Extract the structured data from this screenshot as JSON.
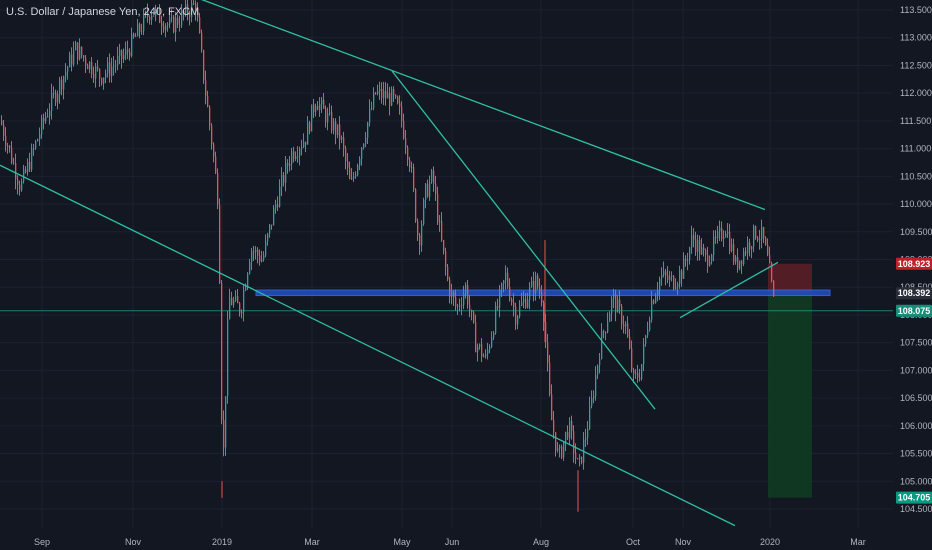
{
  "header": {
    "symbol_title": "U.S. Dollar / Japanese Yen, 240, FXCM"
  },
  "colors": {
    "background": "#131722",
    "bull": "#26a69a",
    "bear": "#ef5350",
    "trendline": "#2fbfa4",
    "support_zone": "#2151c4",
    "stop_zone": "#5a1e26",
    "target_zone": "#0f3b22",
    "price_line": "#26a69a",
    "badge_red": "#c0202a",
    "badge_dark": "#2a2e39",
    "badge_teal": "#138f7a",
    "badge_green": "#089981"
  },
  "chart_data": {
    "type": "candlestick",
    "title": "U.S. Dollar / Japanese Yen, 240, FXCM",
    "x_axis": {
      "ticks": [
        "Sep",
        "Nov",
        "2019",
        "Mar",
        "May",
        "Jun",
        "Aug",
        "Oct",
        "Nov",
        "2020",
        "Mar"
      ]
    },
    "y_axis": {
      "range": [
        104.25,
        113.65
      ],
      "ticks": [
        "113.500",
        "113.000",
        "112.500",
        "112.000",
        "111.500",
        "111.000",
        "110.500",
        "110.000",
        "109.500",
        "109.000",
        "108.500",
        "108.000",
        "107.500",
        "107.000",
        "106.500",
        "106.000",
        "105.500",
        "105.000",
        "104.500"
      ]
    },
    "price_path": [
      [
        0,
        111.5
      ],
      [
        20,
        110.3
      ],
      [
        45,
        111.6
      ],
      [
        75,
        112.8
      ],
      [
        100,
        112.3
      ],
      [
        125,
        112.7
      ],
      [
        150,
        113.5
      ],
      [
        170,
        113.2
      ],
      [
        195,
        113.6
      ],
      [
        205,
        112.0
      ],
      [
        212,
        111.0
      ],
      [
        218,
        110.0
      ],
      [
        222,
        105.0
      ],
      [
        228,
        108.3
      ],
      [
        240,
        108.1
      ],
      [
        250,
        109.2
      ],
      [
        262,
        109.0
      ],
      [
        275,
        110.0
      ],
      [
        290,
        110.9
      ],
      [
        305,
        111.2
      ],
      [
        315,
        111.9
      ],
      [
        325,
        111.6
      ],
      [
        340,
        111.2
      ],
      [
        350,
        110.3
      ],
      [
        360,
        111.0
      ],
      [
        375,
        112.0
      ],
      [
        392,
        111.9
      ],
      [
        400,
        111.6
      ],
      [
        410,
        110.7
      ],
      [
        418,
        109.3
      ],
      [
        425,
        110.2
      ],
      [
        432,
        110.5
      ],
      [
        440,
        109.4
      ],
      [
        448,
        108.5
      ],
      [
        456,
        108.1
      ],
      [
        465,
        108.5
      ],
      [
        475,
        107.5
      ],
      [
        485,
        107.2
      ],
      [
        495,
        108.0
      ],
      [
        505,
        108.7
      ],
      [
        515,
        108.0
      ],
      [
        525,
        108.3
      ],
      [
        535,
        108.6
      ],
      [
        542,
        108.3
      ],
      [
        550,
        106.2
      ],
      [
        558,
        105.4
      ],
      [
        568,
        106.0
      ],
      [
        578,
        105.2
      ],
      [
        590,
        106.3
      ],
      [
        600,
        107.5
      ],
      [
        612,
        108.3
      ],
      [
        625,
        107.8
      ],
      [
        633,
        106.8
      ],
      [
        640,
        107.0
      ],
      [
        650,
        108.2
      ],
      [
        660,
        108.7
      ],
      [
        672,
        108.6
      ],
      [
        682,
        108.8
      ],
      [
        692,
        109.4
      ],
      [
        705,
        109.0
      ],
      [
        715,
        109.3
      ],
      [
        725,
        109.6
      ],
      [
        735,
        108.9
      ],
      [
        745,
        109.2
      ],
      [
        755,
        109.5
      ],
      [
        762,
        109.4
      ],
      [
        768,
        108.9
      ],
      [
        774,
        108.1
      ]
    ],
    "extreme_wicks": [
      {
        "x": 222,
        "low": 104.7
      },
      {
        "x": 578,
        "low": 104.45
      },
      {
        "x": 545,
        "high": 109.35
      }
    ],
    "trendlines": [
      {
        "from": [
          200,
          113.7
        ],
        "to": [
          765,
          109.9
        ]
      },
      {
        "from": [
          0,
          110.7
        ],
        "to": [
          735,
          104.2
        ]
      },
      {
        "from": [
          392,
          112.4
        ],
        "to": [
          655,
          106.3
        ]
      },
      {
        "from": [
          680,
          107.95
        ],
        "to": [
          778,
          108.95
        ]
      }
    ],
    "support_zone": {
      "x_from": 256,
      "x_to": 830,
      "y_low": 108.35,
      "y_high": 108.45
    },
    "position": {
      "x_from": 768,
      "x_to": 812,
      "stop_loss": 108.923,
      "entry": 108.392,
      "take_profit": 104.705
    },
    "current_price": 108.075,
    "price_badges": [
      {
        "label": "108.923",
        "value": 108.923,
        "style": "badge_red"
      },
      {
        "label": "108.392",
        "value": 108.392,
        "style": "badge_dark"
      },
      {
        "label": "108.075",
        "value": 108.075,
        "style": "badge_teal"
      },
      {
        "label": "104.705",
        "value": 104.705,
        "style": "badge_green"
      }
    ]
  }
}
